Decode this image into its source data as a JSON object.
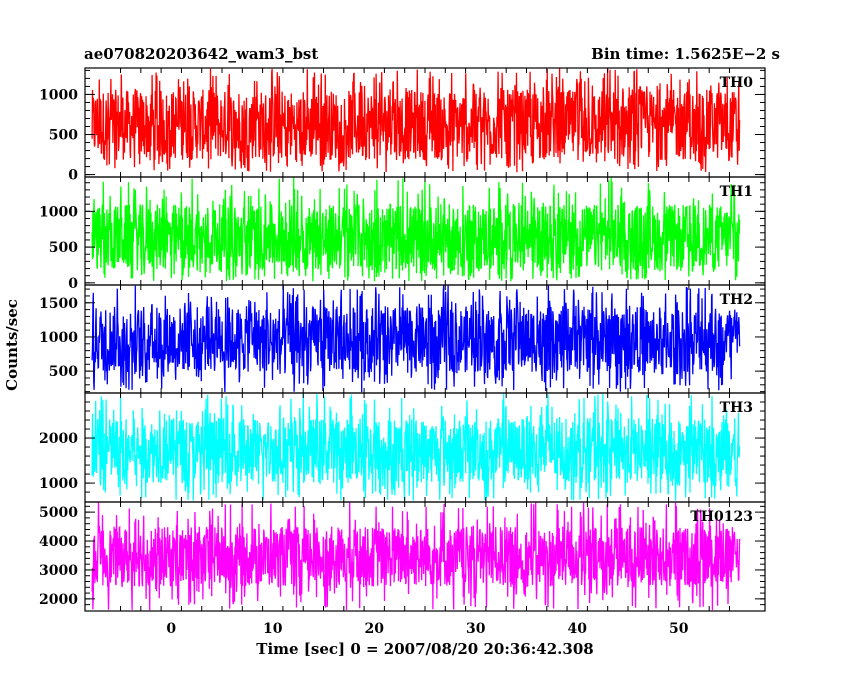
{
  "chart_data": {
    "type": "line",
    "title": "ae070820203642_wam3_bst",
    "subtitle": "Bin time: 1.5625E−2 s",
    "xlabel": "Time [sec] 0 = 2007/08/20 20:36:42.308",
    "ylabel": "Counts/sec",
    "xlim": [
      -8.5,
      58.5
    ],
    "x_data_range": [
      -7.8,
      56.0
    ],
    "xticks": [
      0,
      10,
      20,
      30,
      40,
      50
    ],
    "xtick_labels": [
      "0",
      "10",
      "20",
      "30",
      "40",
      "50"
    ],
    "grid": false,
    "panels": [
      {
        "name": "TH0",
        "color": "#ff0000",
        "ylim": [
          -30,
          1330
        ],
        "yticks": [
          0,
          500,
          1000
        ],
        "ytick_labels": [
          "0",
          "500",
          "1000"
        ],
        "mean": 620,
        "low_extreme": 30,
        "high_extreme": 1330,
        "band_low": 180,
        "band_high": 1060
      },
      {
        "name": "TH1",
        "color": "#00ff00",
        "ylim": [
          -30,
          1480
        ],
        "yticks": [
          0,
          500,
          1000
        ],
        "ytick_labels": [
          "0",
          "500",
          "1000"
        ],
        "mean": 640,
        "low_extreme": 20,
        "high_extreme": 1480,
        "band_low": 170,
        "band_high": 1100
      },
      {
        "name": "TH2",
        "color": "#0000ff",
        "ylim": [
          180,
          1760
        ],
        "yticks": [
          500,
          1000,
          1500
        ],
        "ytick_labels": [
          "500",
          "1000",
          "1500"
        ],
        "mean": 980,
        "low_extreme": 190,
        "high_extreme": 1760,
        "band_low": 480,
        "band_high": 1450
      },
      {
        "name": "TH3",
        "color": "#00ffff",
        "ylim": [
          580,
          3000
        ],
        "yticks": [
          1000,
          2000
        ],
        "ytick_labels": [
          "1000",
          "2000"
        ],
        "mean": 1620,
        "low_extreme": 600,
        "high_extreme": 3000,
        "band_low": 1000,
        "band_high": 2450
      },
      {
        "name": "TH0123",
        "color": "#ff00ff",
        "ylim": [
          1580,
          5350
        ],
        "yticks": [
          2000,
          3000,
          4000,
          5000
        ],
        "ytick_labels": [
          "2000",
          "3000",
          "4000",
          "5000"
        ],
        "mean": 3350,
        "low_extreme": 1600,
        "high_extreme": 5350,
        "band_low": 2400,
        "band_high": 4500
      }
    ]
  }
}
